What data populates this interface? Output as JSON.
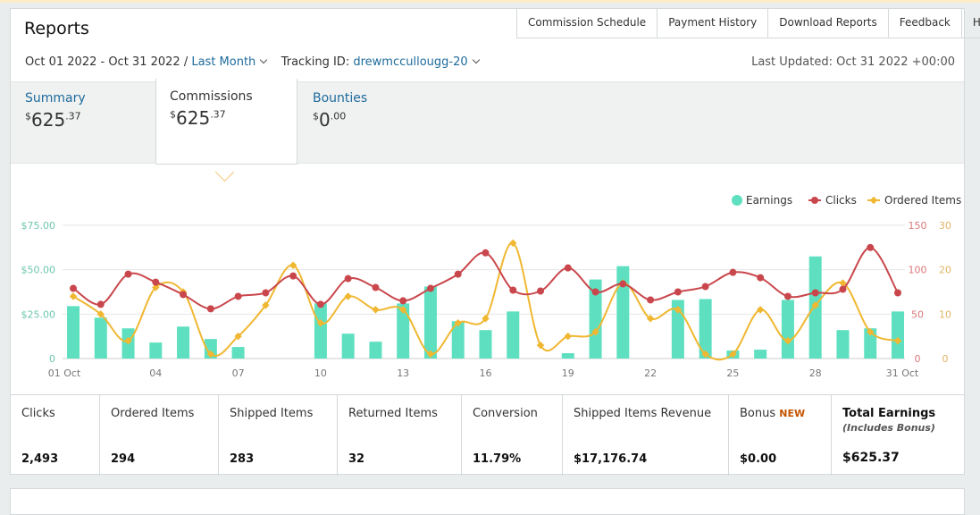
{
  "header": {
    "title": "Reports",
    "links": [
      "Commission Schedule",
      "Payment History",
      "Download Reports",
      "Feedback",
      "Help"
    ],
    "date_range": "Oct 01 2022 - Oct 31 2022 /",
    "period": "Last Month",
    "tracking_label": "Tracking ID:",
    "tracking_id": "drewmccullougg-20",
    "last_updated": "Last Updated: Oct 31 2022 +00:00"
  },
  "tabs": [
    {
      "label": "Summary",
      "currency": "$",
      "whole": "625",
      "cents": ".37"
    },
    {
      "label": "Commissions",
      "currency": "$",
      "whole": "625",
      "cents": ".37"
    },
    {
      "label": "Bounties",
      "currency": "$",
      "whole": "0",
      "cents": ".00"
    }
  ],
  "stats": [
    {
      "label": "Clicks",
      "value": "2,493"
    },
    {
      "label": "Ordered Items",
      "value": "294"
    },
    {
      "label": "Shipped Items",
      "value": "283"
    },
    {
      "label": "Returned Items",
      "value": "32"
    },
    {
      "label": "Conversion",
      "value": "11.79%"
    },
    {
      "label": "Shipped Items Revenue",
      "value": "$17,176.74"
    },
    {
      "label": "Bonus",
      "badge": "NEW",
      "value": "$0.00"
    },
    {
      "label": "Total Earnings",
      "sub": "(Includes Bonus)",
      "value": "$625.37"
    }
  ],
  "colors": {
    "earnings": "#5ee0c0",
    "clicks": "#c9474c",
    "ordered": "#f0b731",
    "link": "#1e6b9c"
  },
  "chart_data": {
    "type": "bar",
    "legend": [
      "Earnings",
      "Clicks",
      "Ordered Items"
    ],
    "legend_placement": "top-right",
    "grid": true,
    "x_ticks": [
      "01 Oct",
      "04",
      "07",
      "10",
      "13",
      "16",
      "19",
      "22",
      "25",
      "28",
      "31 Oct"
    ],
    "y_left_ticks": [
      "0",
      "$25.00",
      "$50.00",
      "$75.00"
    ],
    "y_right1_ticks": [
      "0",
      "50",
      "100",
      "150"
    ],
    "y_right2_ticks": [
      "0",
      "10",
      "20",
      "30"
    ],
    "y_left_range": [
      0,
      75
    ],
    "y_right1_range": [
      0,
      150
    ],
    "y_right2_range": [
      0,
      30
    ],
    "days": [
      "Oct 01",
      "Oct 02",
      "Oct 03",
      "Oct 04",
      "Oct 05",
      "Oct 06",
      "Oct 07",
      "Oct 08",
      "Oct 09",
      "Oct 10",
      "Oct 11",
      "Oct 12",
      "Oct 13",
      "Oct 14",
      "Oct 15",
      "Oct 16",
      "Oct 17",
      "Oct 18",
      "Oct 19",
      "Oct 20",
      "Oct 21",
      "Oct 22",
      "Oct 23",
      "Oct 24",
      "Oct 25",
      "Oct 26",
      "Oct 27",
      "Oct 28",
      "Oct 29",
      "Oct 30",
      "Oct 31"
    ],
    "series": [
      {
        "name": "Earnings",
        "type": "bar",
        "axis": "left",
        "values": [
          29.5,
          23,
          17,
          9,
          18,
          11,
          6.5,
          0,
          0,
          31,
          14,
          9.5,
          31,
          40.5,
          21,
          16,
          26.5,
          0,
          3,
          44.5,
          52,
          0,
          33,
          33.5,
          4.5,
          5,
          33,
          57.5,
          16,
          17,
          26.5
        ]
      },
      {
        "name": "Clicks",
        "type": "line",
        "axis": "right1",
        "values": [
          79,
          61,
          95,
          86,
          72,
          56,
          70,
          74,
          93,
          61,
          90,
          80,
          65,
          79,
          95,
          119,
          77,
          76,
          102,
          75,
          84,
          66,
          75,
          81,
          97,
          91,
          70,
          74,
          78,
          125,
          74
        ]
      },
      {
        "name": "Ordered Items",
        "type": "line",
        "axis": "right2",
        "values": [
          14,
          10,
          4,
          16,
          15,
          1,
          5,
          12,
          21,
          8,
          14,
          11,
          11,
          1,
          8,
          9,
          26,
          3,
          5,
          6,
          17,
          9,
          11,
          1,
          1,
          11,
          4,
          12,
          17,
          6,
          4
        ]
      }
    ]
  }
}
